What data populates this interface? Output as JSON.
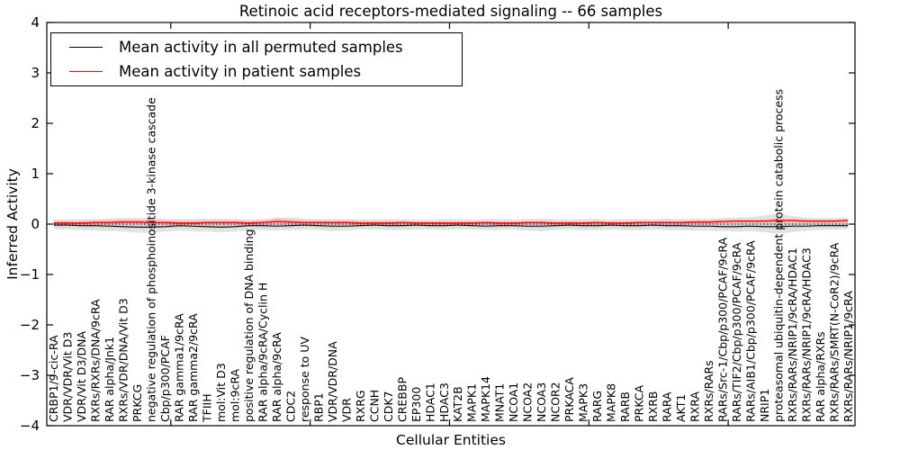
{
  "title": "Retinoic acid receptors-mediated signaling -- 66 samples",
  "legend": {
    "entries": [
      {
        "label": "Mean activity in all permuted samples",
        "color": "#000000"
      },
      {
        "label": "Mean activity in patient samples",
        "color": "#ff0000"
      }
    ]
  },
  "axes": {
    "ylabel": "Inferred Activity",
    "xlabel": "Cellular Entities",
    "yticks": [
      {
        "v": 4,
        "label": "4"
      },
      {
        "v": 3,
        "label": "3"
      },
      {
        "v": 2,
        "label": "2"
      },
      {
        "v": 1,
        "label": "1"
      },
      {
        "v": 0,
        "label": "0"
      },
      {
        "v": -1,
        "label": "−1"
      },
      {
        "v": -2,
        "label": "−2"
      },
      {
        "v": -3,
        "label": "−3"
      },
      {
        "v": -4,
        "label": "−4"
      }
    ]
  },
  "chart_data": {
    "type": "line",
    "title": "Retinoic acid receptors-mediated signaling -- 66 samples",
    "xlabel": "Cellular Entities",
    "ylabel": "Inferred Activity",
    "ylim": [
      -4,
      4
    ],
    "grid": false,
    "legend_position": "upper left",
    "zero_line": true,
    "categories": [
      "CRBP1/9-cic-RA",
      "VDR/VDR/Vit D3",
      "VDR/Vit D3/DNA",
      "RXRs/RXRs/DNA/9cRA",
      "RAR alpha/Jnk1",
      "RXRs/VDR/DNA/Vit D3",
      "PRKCG",
      "negative regulation of phosphoinositide 3-kinase cascade",
      "Cbp/p300/PCAF",
      "RAR gamma1/9cRA",
      "RAR gamma2/9cRA",
      "TFIIH",
      "mol:Vit D3",
      "mol:9cRA",
      "positive regulation of DNA binding",
      "RAR alpha/9cRA/Cyclin H",
      "RAR alpha/9cRA",
      "CDC2",
      "response to UV",
      "RBP1",
      "VDR/VDR/DNA",
      "VDR",
      "RXRG",
      "CCNH",
      "CDK7",
      "CREBBP",
      "EP300",
      "HDAC1",
      "HDAC3",
      "KAT2B",
      "MAPK1",
      "MAPK14",
      "MNAT1",
      "NCOA1",
      "NCOA2",
      "NCOA3",
      "NCOR2",
      "PRKACA",
      "MAPK3",
      "RARG",
      "MAPK8",
      "RARB",
      "PRKCA",
      "RXRB",
      "RARA",
      "AKT1",
      "RXRA",
      "RXRs/RARs",
      "RARs/Src-1/Cbp/p300/PCAF/9cRA",
      "RARs/TIF2/Cbp/p300/PCAF/9cRA",
      "RARs/AIB1/Cbp/p300/PCAF/9cRA",
      "NRIP1",
      "proteasomal ubiquitin-dependent protein catabolic process",
      "RXRs/RARs/NRIP1/9cRA/HDAC1",
      "RXRs/RARs/NRIP1/9cRA/HDAC3",
      "RAR alpha/RXRs",
      "RXRs/RARs/SMRT(N-CoR2)/9cRA",
      "RXRs/RARs/NRIP1/9cRA"
    ],
    "series": [
      {
        "name": "Mean activity in all permuted samples",
        "color": "#000000",
        "values": [
          -0.02,
          -0.02,
          -0.03,
          -0.03,
          -0.04,
          -0.05,
          -0.06,
          -0.06,
          -0.05,
          -0.03,
          -0.04,
          -0.05,
          -0.06,
          -0.05,
          -0.03,
          -0.03,
          -0.04,
          -0.03,
          -0.02,
          -0.03,
          -0.04,
          -0.04,
          -0.03,
          -0.02,
          -0.03,
          -0.03,
          -0.02,
          -0.03,
          -0.03,
          -0.02,
          -0.03,
          -0.04,
          -0.03,
          -0.03,
          -0.04,
          -0.04,
          -0.03,
          -0.02,
          -0.03,
          -0.03,
          -0.02,
          -0.03,
          -0.03,
          -0.02,
          -0.03,
          -0.03,
          -0.04,
          -0.04,
          -0.05,
          -0.05,
          -0.04,
          -0.05,
          -0.05,
          -0.04,
          -0.04,
          -0.03,
          -0.03,
          -0.03
        ]
      },
      {
        "name": "Mean activity in patient samples",
        "color": "#ff0000",
        "values": [
          0.02,
          0.02,
          0.02,
          0.03,
          0.03,
          0.04,
          0.04,
          0.03,
          0.03,
          0.02,
          0.02,
          0.03,
          0.03,
          0.03,
          0.02,
          0.03,
          0.05,
          0.04,
          0.03,
          0.03,
          0.03,
          0.03,
          0.02,
          0.02,
          0.02,
          0.03,
          0.02,
          0.02,
          0.02,
          0.02,
          0.02,
          0.03,
          0.02,
          0.02,
          0.03,
          0.03,
          0.02,
          0.02,
          0.02,
          0.03,
          0.02,
          0.02,
          0.03,
          0.03,
          0.03,
          0.03,
          0.04,
          0.04,
          0.05,
          0.06,
          0.06,
          0.06,
          0.07,
          0.07,
          0.06,
          0.06,
          0.06,
          0.07
        ]
      }
    ],
    "bands": [
      {
        "name": "permuted-std-outer-band",
        "color": "#e2e2e2",
        "upper": [
          0.09,
          0.09,
          0.1,
          0.1,
          0.11,
          0.12,
          0.12,
          0.12,
          0.11,
          0.1,
          0.1,
          0.11,
          0.11,
          0.1,
          0.09,
          0.1,
          0.13,
          0.13,
          0.11,
          0.1,
          0.1,
          0.1,
          0.09,
          0.09,
          0.1,
          0.1,
          0.09,
          0.09,
          0.1,
          0.1,
          0.09,
          0.1,
          0.1,
          0.09,
          0.1,
          0.11,
          0.1,
          0.09,
          0.1,
          0.1,
          0.09,
          0.1,
          0.1,
          0.1,
          0.11,
          0.1,
          0.11,
          0.11,
          0.12,
          0.13,
          0.14,
          0.17,
          0.21,
          0.16,
          0.13,
          0.12,
          0.12,
          0.12
        ],
        "lower": [
          -0.1,
          -0.11,
          -0.12,
          -0.13,
          -0.14,
          -0.15,
          -0.17,
          -0.17,
          -0.15,
          -0.13,
          -0.14,
          -0.15,
          -0.16,
          -0.15,
          -0.12,
          -0.12,
          -0.13,
          -0.12,
          -0.11,
          -0.12,
          -0.14,
          -0.13,
          -0.11,
          -0.11,
          -0.12,
          -0.12,
          -0.11,
          -0.11,
          -0.12,
          -0.11,
          -0.11,
          -0.12,
          -0.12,
          -0.11,
          -0.13,
          -0.14,
          -0.12,
          -0.11,
          -0.12,
          -0.12,
          -0.11,
          -0.12,
          -0.12,
          -0.11,
          -0.12,
          -0.12,
          -0.13,
          -0.13,
          -0.14,
          -0.15,
          -0.14,
          -0.16,
          -0.19,
          -0.16,
          -0.13,
          -0.12,
          -0.11,
          -0.1
        ]
      },
      {
        "name": "permuted-std-inner-band",
        "color": "#d4d4d4",
        "upper": [
          0.05,
          0.05,
          0.05,
          0.05,
          0.06,
          0.06,
          0.06,
          0.06,
          0.06,
          0.05,
          0.05,
          0.06,
          0.06,
          0.05,
          0.05,
          0.05,
          0.07,
          0.07,
          0.06,
          0.05,
          0.05,
          0.05,
          0.05,
          0.05,
          0.05,
          0.05,
          0.05,
          0.05,
          0.05,
          0.05,
          0.05,
          0.05,
          0.05,
          0.05,
          0.05,
          0.06,
          0.05,
          0.05,
          0.05,
          0.05,
          0.05,
          0.05,
          0.05,
          0.05,
          0.06,
          0.05,
          0.06,
          0.06,
          0.06,
          0.07,
          0.07,
          0.09,
          0.11,
          0.08,
          0.07,
          0.06,
          0.06,
          0.06
        ],
        "lower": [
          -0.06,
          -0.06,
          -0.07,
          -0.07,
          -0.08,
          -0.08,
          -0.09,
          -0.09,
          -0.08,
          -0.07,
          -0.08,
          -0.08,
          -0.09,
          -0.08,
          -0.07,
          -0.07,
          -0.07,
          -0.07,
          -0.06,
          -0.07,
          -0.08,
          -0.07,
          -0.06,
          -0.06,
          -0.07,
          -0.07,
          -0.06,
          -0.06,
          -0.07,
          -0.06,
          -0.06,
          -0.07,
          -0.07,
          -0.06,
          -0.07,
          -0.08,
          -0.07,
          -0.06,
          -0.07,
          -0.07,
          -0.06,
          -0.07,
          -0.07,
          -0.06,
          -0.07,
          -0.07,
          -0.07,
          -0.07,
          -0.08,
          -0.08,
          -0.08,
          -0.09,
          -0.1,
          -0.09,
          -0.07,
          -0.07,
          -0.06,
          -0.06
        ]
      },
      {
        "name": "patient-std-band",
        "color": "#f4b6b6",
        "upper": [
          0.06,
          0.06,
          0.06,
          0.07,
          0.08,
          0.09,
          0.09,
          0.08,
          0.07,
          0.06,
          0.06,
          0.07,
          0.07,
          0.07,
          0.06,
          0.07,
          0.1,
          0.09,
          0.07,
          0.07,
          0.07,
          0.07,
          0.06,
          0.06,
          0.06,
          0.06,
          0.05,
          0.05,
          0.05,
          0.05,
          0.05,
          0.06,
          0.05,
          0.05,
          0.06,
          0.06,
          0.05,
          0.05,
          0.05,
          0.06,
          0.05,
          0.05,
          0.06,
          0.06,
          0.06,
          0.06,
          0.07,
          0.07,
          0.08,
          0.09,
          0.09,
          0.09,
          0.11,
          0.1,
          0.09,
          0.09,
          0.09,
          0.1
        ],
        "lower": [
          -0.02,
          -0.02,
          -0.02,
          -0.01,
          -0.01,
          0.0,
          0.0,
          -0.01,
          -0.01,
          -0.02,
          -0.02,
          -0.01,
          -0.01,
          -0.01,
          -0.02,
          -0.01,
          0.01,
          0.0,
          -0.01,
          -0.01,
          -0.01,
          -0.01,
          -0.02,
          -0.02,
          -0.02,
          -0.01,
          -0.02,
          -0.02,
          -0.02,
          -0.02,
          -0.02,
          -0.01,
          -0.02,
          -0.02,
          -0.01,
          -0.01,
          -0.02,
          -0.02,
          -0.02,
          -0.01,
          -0.02,
          -0.02,
          -0.01,
          -0.01,
          -0.01,
          -0.01,
          0.0,
          0.0,
          0.01,
          0.02,
          0.02,
          0.02,
          0.03,
          0.03,
          0.02,
          0.02,
          0.02,
          0.03
        ]
      }
    ]
  }
}
